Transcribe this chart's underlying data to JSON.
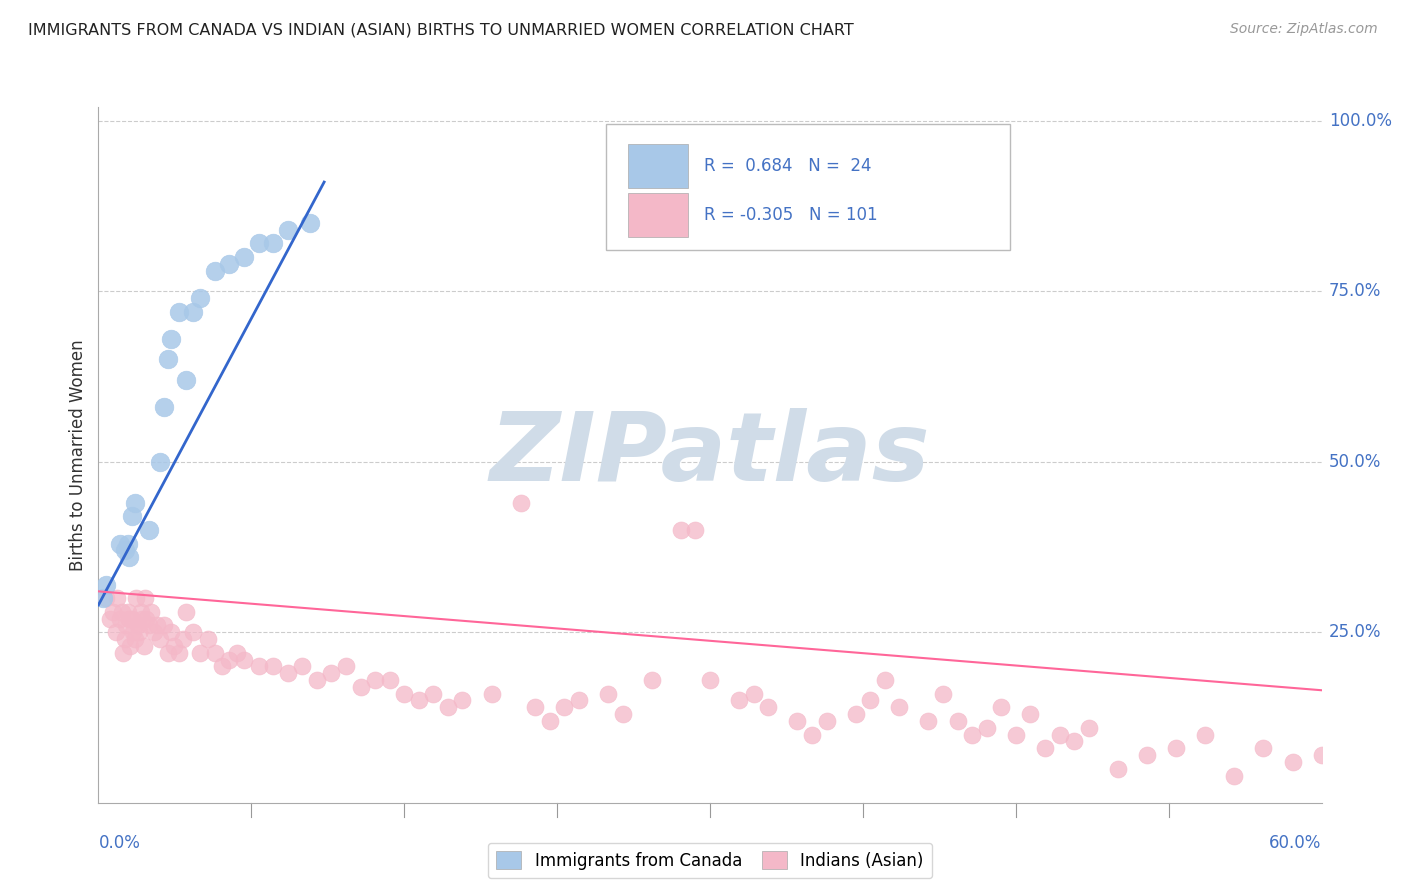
{
  "title": "IMMIGRANTS FROM CANADA VS INDIAN (ASIAN) BIRTHS TO UNMARRIED WOMEN CORRELATION CHART",
  "source": "Source: ZipAtlas.com",
  "ylabel": "Births to Unmarried Women",
  "legend_labels": [
    "Immigrants from Canada",
    "Indians (Asian)"
  ],
  "blue_color": "#a8c8e8",
  "pink_color": "#f4b8c8",
  "blue_line_color": "#3366cc",
  "pink_line_color": "#ff6699",
  "blue_scatter": {
    "x": [
      0.3,
      0.5,
      1.5,
      1.8,
      2.0,
      2.1,
      2.3,
      2.5,
      3.5,
      4.2,
      4.5,
      4.8,
      5.0,
      5.5,
      6.0,
      6.5,
      7.0,
      8.0,
      9.0,
      10.0,
      11.0,
      12.0,
      13.0,
      14.5
    ],
    "y": [
      30,
      32,
      38,
      37,
      38,
      36,
      42,
      44,
      40,
      50,
      58,
      65,
      68,
      72,
      62,
      72,
      74,
      78,
      79,
      80,
      82,
      82,
      84,
      85
    ]
  },
  "pink_scatter": {
    "x": [
      0.5,
      0.8,
      1.0,
      1.2,
      1.3,
      1.5,
      1.6,
      1.7,
      1.8,
      1.9,
      2.0,
      2.1,
      2.2,
      2.3,
      2.4,
      2.5,
      2.6,
      2.7,
      2.8,
      2.9,
      3.0,
      3.1,
      3.2,
      3.3,
      3.5,
      3.6,
      3.8,
      4.0,
      4.2,
      4.5,
      4.8,
      5.0,
      5.2,
      5.5,
      5.8,
      6.0,
      6.5,
      7.0,
      7.5,
      8.0,
      8.5,
      9.0,
      9.5,
      10.0,
      11.0,
      12.0,
      13.0,
      14.0,
      15.0,
      16.0,
      17.0,
      18.0,
      19.0,
      20.0,
      21.0,
      22.0,
      23.0,
      24.0,
      25.0,
      27.0,
      29.0,
      30.0,
      31.0,
      32.0,
      33.0,
      35.0,
      36.0,
      38.0,
      40.0,
      41.0,
      42.0,
      44.0,
      45.0,
      46.0,
      48.0,
      49.0,
      50.0,
      52.0,
      53.0,
      54.0,
      55.0,
      57.0,
      58.0,
      59.0,
      60.0,
      61.0,
      62.0,
      63.0,
      64.0,
      65.0,
      66.0,
      67.0,
      68.0,
      70.0,
      72.0,
      74.0,
      76.0,
      78.0,
      80.0,
      82.0,
      84.0
    ],
    "y": [
      30,
      27,
      28,
      25,
      30,
      27,
      28,
      22,
      24,
      26,
      28,
      27,
      23,
      27,
      25,
      24,
      30,
      26,
      25,
      28,
      27,
      23,
      30,
      27,
      26,
      28,
      25,
      26,
      24,
      26,
      22,
      25,
      23,
      22,
      24,
      28,
      25,
      22,
      24,
      22,
      20,
      21,
      22,
      21,
      20,
      20,
      19,
      20,
      18,
      19,
      20,
      17,
      18,
      18,
      16,
      15,
      16,
      14,
      15,
      16,
      44,
      14,
      12,
      14,
      15,
      16,
      13,
      18,
      40,
      40,
      18,
      15,
      16,
      14,
      12,
      10,
      12,
      13,
      15,
      18,
      14,
      12,
      16,
      12,
      10,
      11,
      14,
      10,
      13,
      8,
      10,
      9,
      11,
      5,
      7,
      8,
      10,
      4,
      8,
      6,
      7
    ]
  },
  "blue_line": {
    "x": [
      0.0,
      15.5
    ],
    "y": [
      29.0,
      91.0
    ]
  },
  "pink_line": {
    "x": [
      0.0,
      84.0
    ],
    "y": [
      31.0,
      16.5
    ]
  },
  "xlim": [
    0,
    84
  ],
  "ylim": [
    0,
    102
  ],
  "x_display_max": 60.0,
  "x_data_max": 84.0,
  "y_ticks": [
    0,
    25,
    50,
    75,
    100
  ],
  "y_right_labels": [
    "25.0%",
    "50.0%",
    "75.0%",
    "100.0%"
  ],
  "background_color": "#ffffff",
  "grid_color": "#cccccc",
  "tick_label_color": "#4472c4",
  "watermark_text": "ZIPatlas",
  "watermark_color": "#d0dce8"
}
